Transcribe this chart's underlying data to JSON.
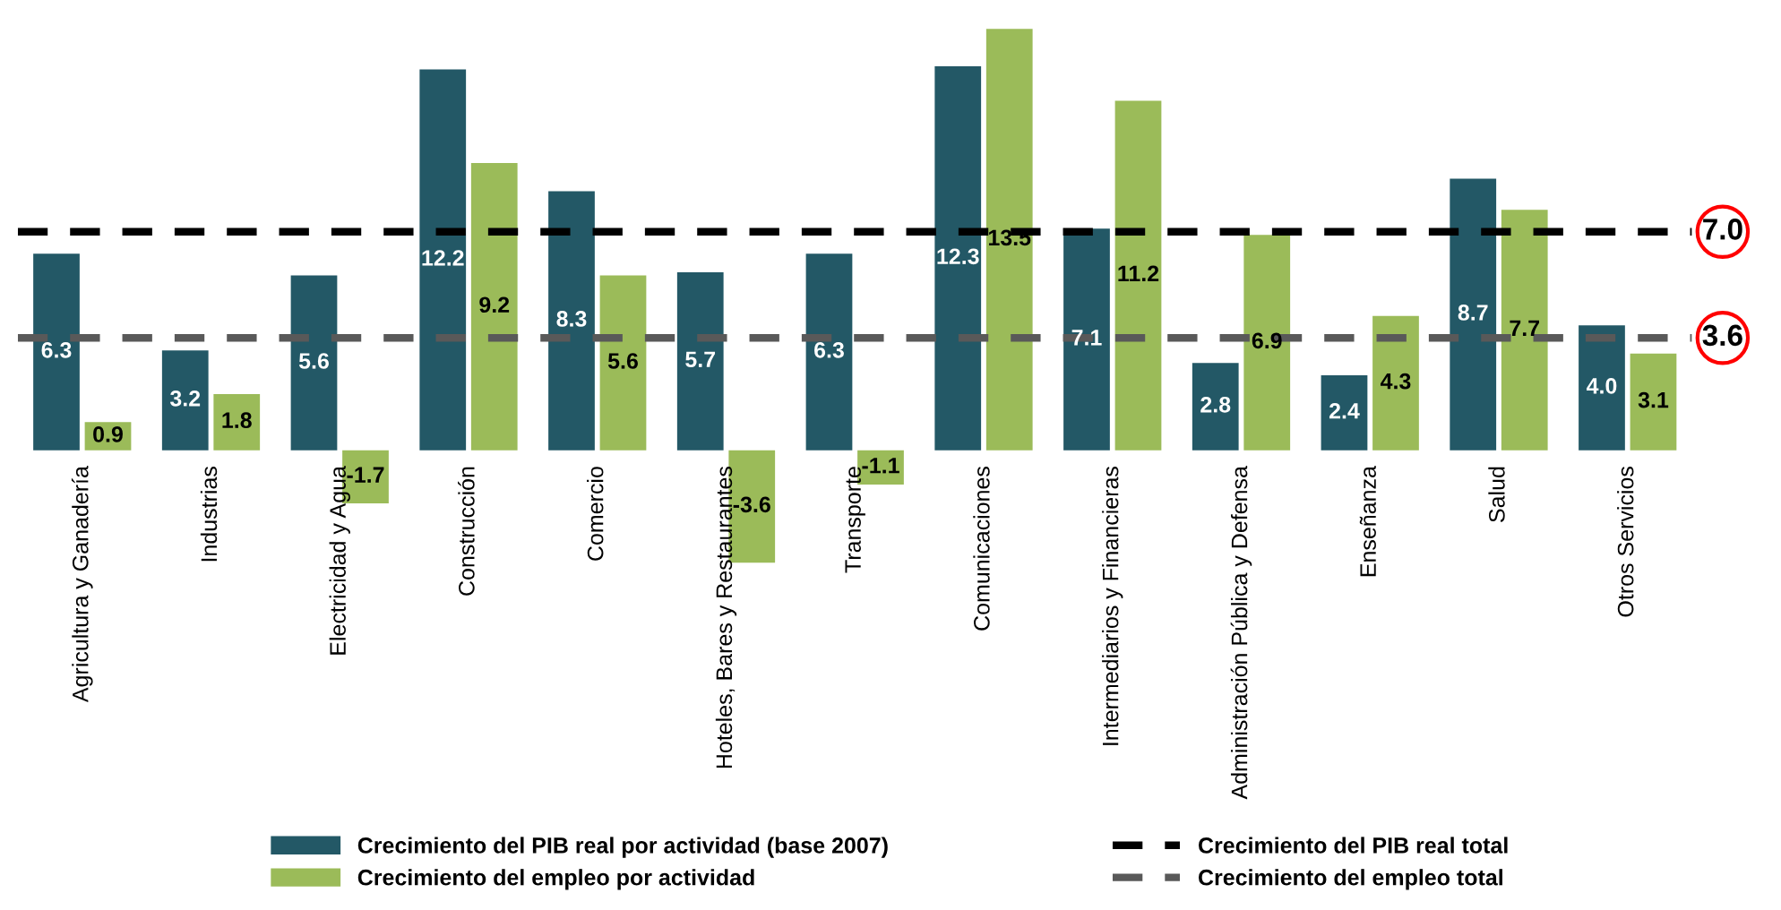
{
  "chart_data": {
    "type": "bar",
    "categories": [
      "Agricultura y Ganadería",
      "Industrias",
      "Electricidad y Agua",
      "Construcción",
      "Comercio",
      "Hoteles, Bares y Restaurantes",
      "Transporte",
      "Comunicaciones",
      "Intermediarios y Financieras",
      "Administración Pública y Defensa",
      "Enseñanza",
      "Salud",
      "Otros Servicios"
    ],
    "series": [
      {
        "name": "Crecimiento del PIB real por actividad (base 2007)",
        "color": "#235866",
        "values": [
          6.3,
          3.2,
          5.6,
          12.2,
          8.3,
          5.7,
          6.3,
          12.3,
          7.1,
          2.8,
          2.4,
          8.7,
          4.0
        ],
        "value_labels": [
          "6.3",
          "3.2",
          "5.6",
          "12.2",
          "8.3",
          "5.7",
          "6.3",
          "12.3",
          "7.1",
          "2.8",
          "2.4",
          "8.7",
          "4.0"
        ]
      },
      {
        "name": "Crecimiento del empleo por actividad",
        "color": "#9bbb59",
        "values": [
          0.9,
          1.8,
          -1.7,
          9.2,
          5.6,
          -3.6,
          -1.1,
          13.5,
          11.2,
          6.9,
          4.3,
          7.7,
          3.1
        ],
        "value_labels": [
          "0.9",
          "1.8",
          "-1.7",
          "9.2",
          "5.6",
          "-3.6",
          "-1.1",
          "13.5",
          "11.2",
          "6.9",
          "4.3",
          "7.7",
          "3.1"
        ]
      }
    ],
    "ref_lines": [
      {
        "axis": "y",
        "value": 7.0,
        "label": "Crecimiento del PIB real total",
        "color": "#000000",
        "line_style": "dashed"
      },
      {
        "axis": "y",
        "value": 3.6,
        "label": "Crecimiento del empleo total",
        "color": "#595959",
        "line_style": "dashed"
      }
    ],
    "annotations": [
      "7.0",
      "3.6"
    ],
    "legend": "bottom"
  }
}
